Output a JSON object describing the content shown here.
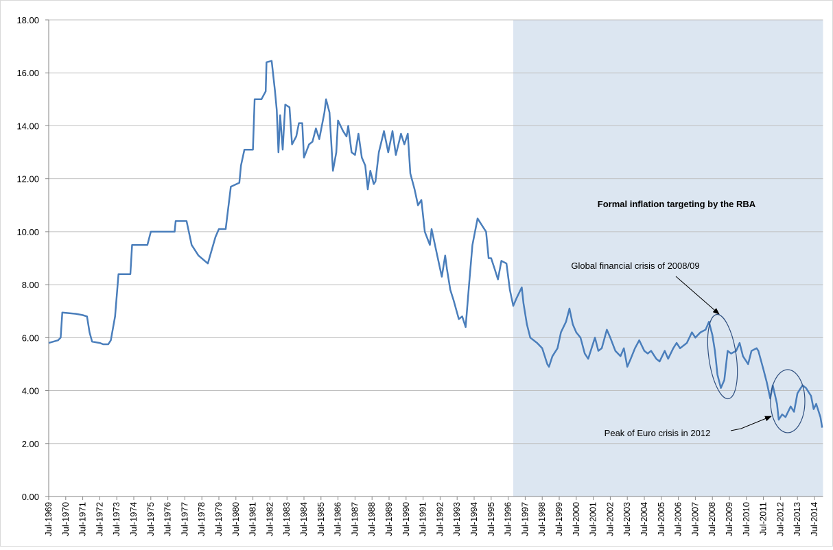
{
  "chart_data": {
    "type": "line",
    "color": "#4a7ebb",
    "grid": true,
    "xlim": [
      1969.5,
      2015.0
    ],
    "ylim": [
      0,
      18
    ],
    "yticks": [
      {
        "value": 0,
        "label": "0.00"
      },
      {
        "value": 2,
        "label": "2.00"
      },
      {
        "value": 4,
        "label": "4.00"
      },
      {
        "value": 6,
        "label": "6.00"
      },
      {
        "value": 8,
        "label": "8.00"
      },
      {
        "value": 10,
        "label": "10.00"
      },
      {
        "value": 12,
        "label": "12.00"
      },
      {
        "value": 14,
        "label": "14.00"
      },
      {
        "value": 16,
        "label": "16.00"
      },
      {
        "value": 18,
        "label": "18.00"
      }
    ],
    "xticks": [
      {
        "value": 1969.5,
        "label": "Jul-1969"
      },
      {
        "value": 1970.5,
        "label": "Jul-1970"
      },
      {
        "value": 1971.5,
        "label": "Jul-1971"
      },
      {
        "value": 1972.5,
        "label": "Jul-1972"
      },
      {
        "value": 1973.5,
        "label": "Jul-1973"
      },
      {
        "value": 1974.5,
        "label": "Jul-1974"
      },
      {
        "value": 1975.5,
        "label": "Jul-1975"
      },
      {
        "value": 1976.5,
        "label": "Jul-1976"
      },
      {
        "value": 1977.5,
        "label": "Jul-1977"
      },
      {
        "value": 1978.5,
        "label": "Jul-1978"
      },
      {
        "value": 1979.5,
        "label": "Jul-1979"
      },
      {
        "value": 1980.5,
        "label": "Jul-1980"
      },
      {
        "value": 1981.5,
        "label": "Jul-1981"
      },
      {
        "value": 1982.5,
        "label": "Jul-1982"
      },
      {
        "value": 1983.5,
        "label": "Jul-1983"
      },
      {
        "value": 1984.5,
        "label": "Jul-1984"
      },
      {
        "value": 1985.5,
        "label": "Jul-1985"
      },
      {
        "value": 1986.5,
        "label": "Jul-1986"
      },
      {
        "value": 1987.5,
        "label": "Jul-1987"
      },
      {
        "value": 1988.5,
        "label": "Jul-1988"
      },
      {
        "value": 1989.5,
        "label": "Jul-1989"
      },
      {
        "value": 1990.5,
        "label": "Jul-1990"
      },
      {
        "value": 1991.5,
        "label": "Jul-1991"
      },
      {
        "value": 1992.5,
        "label": "Jul-1992"
      },
      {
        "value": 1993.5,
        "label": "Jul-1993"
      },
      {
        "value": 1994.5,
        "label": "Jul-1994"
      },
      {
        "value": 1995.5,
        "label": "Jul-1995"
      },
      {
        "value": 1996.5,
        "label": "Jul-1996"
      },
      {
        "value": 1997.5,
        "label": "Jul-1997"
      },
      {
        "value": 1998.5,
        "label": "Jul-1998"
      },
      {
        "value": 1999.5,
        "label": "Jul-1999"
      },
      {
        "value": 2000.5,
        "label": "Jul-2000"
      },
      {
        "value": 2001.5,
        "label": "Jul-2001"
      },
      {
        "value": 2002.5,
        "label": "Jul-2002"
      },
      {
        "value": 2003.5,
        "label": "Jul-2003"
      },
      {
        "value": 2004.5,
        "label": "Jul-2004"
      },
      {
        "value": 2005.5,
        "label": "Jul-2005"
      },
      {
        "value": 2006.5,
        "label": "Jul-2006"
      },
      {
        "value": 2007.5,
        "label": "Jul-2007"
      },
      {
        "value": 2008.5,
        "label": "Jul-2008"
      },
      {
        "value": 2009.5,
        "label": "Jul-2009"
      },
      {
        "value": 2010.5,
        "label": "Jul-2010"
      },
      {
        "value": 2011.5,
        "label": "Jul-2011"
      },
      {
        "value": 2012.5,
        "label": "Jul-2012"
      },
      {
        "value": 2013.5,
        "label": "Jul-2013"
      },
      {
        "value": 2014.5,
        "label": "Jul-2014"
      }
    ],
    "shaded_region": {
      "from": 1996.8,
      "to": 2015.0,
      "label": "Formal inflation targeting by the RBA",
      "color": "#dce6f1"
    },
    "annotations": [
      "Global financial crisis of 2008/09",
      "Peak of Euro crisis in 2012"
    ],
    "x": [
      1969.5,
      1970.05,
      1970.2,
      1970.3,
      1971.1,
      1971.5,
      1971.75,
      1971.9,
      1972.05,
      1972.5,
      1972.7,
      1973.0,
      1973.15,
      1973.4,
      1973.6,
      1974.3,
      1974.4,
      1975.3,
      1975.5,
      1976.5,
      1976.9,
      1976.96,
      1977.6,
      1977.9,
      1978.3,
      1978.85,
      1979.3,
      1979.5,
      1979.9,
      1980.2,
      1980.7,
      1980.8,
      1981.0,
      1981.5,
      1981.6,
      1982.0,
      1982.25,
      1982.3,
      1982.6,
      1982.8,
      1982.9,
      1983.0,
      1983.1,
      1983.25,
      1983.4,
      1983.65,
      1983.8,
      1984.05,
      1984.2,
      1984.4,
      1984.5,
      1984.8,
      1985.0,
      1985.2,
      1985.4,
      1985.7,
      1985.8,
      1986.0,
      1986.2,
      1986.4,
      1986.5,
      1986.8,
      1987.0,
      1987.1,
      1987.3,
      1987.5,
      1987.7,
      1987.9,
      1988.1,
      1988.25,
      1988.4,
      1988.6,
      1988.7,
      1988.9,
      1989.2,
      1989.45,
      1989.7,
      1989.9,
      1990.2,
      1990.4,
      1990.6,
      1990.75,
      1991.0,
      1991.2,
      1991.4,
      1991.6,
      1991.9,
      1992.0,
      1992.3,
      1992.4,
      1992.6,
      1992.8,
      1992.9,
      1993.1,
      1993.3,
      1993.6,
      1993.8,
      1994.0,
      1994.2,
      1994.4,
      1994.7,
      1995.0,
      1995.2,
      1995.35,
      1995.5,
      1995.7,
      1995.9,
      1996.1,
      1996.4,
      1996.6,
      1996.8,
      1997.0,
      1997.3,
      1997.4,
      1997.6,
      1997.8,
      1998.2,
      1998.5,
      1998.8,
      1998.9,
      1999.1,
      1999.4,
      1999.6,
      1999.9,
      2000.1,
      2000.3,
      2000.5,
      2000.75,
      2001.0,
      2001.2,
      2001.6,
      2001.8,
      2002.0,
      2002.3,
      2002.5,
      2002.8,
      2003.1,
      2003.3,
      2003.5,
      2003.7,
      2003.95,
      2004.2,
      2004.5,
      2004.7,
      2004.9,
      2005.2,
      2005.4,
      2005.7,
      2005.9,
      2006.2,
      2006.4,
      2006.6,
      2007.0,
      2007.3,
      2007.5,
      2007.8,
      2008.1,
      2008.3,
      2008.5,
      2008.65,
      2008.8,
      2009.0,
      2009.2,
      2009.4,
      2009.6,
      2009.9,
      2010.1,
      2010.3,
      2010.6,
      2010.8,
      2011.1,
      2011.2,
      2011.5,
      2011.7,
      2011.9,
      2012.05,
      2012.3,
      2012.4,
      2012.6,
      2012.8,
      2013.1,
      2013.3,
      2013.5,
      2013.8,
      2014.0,
      2014.3,
      2014.45,
      2014.6,
      2014.85,
      2014.95
    ],
    "values": [
      5.8,
      5.9,
      6.0,
      6.95,
      6.9,
      6.85,
      6.8,
      6.2,
      5.85,
      5.8,
      5.75,
      5.75,
      5.9,
      6.8,
      8.4,
      8.4,
      9.5,
      9.5,
      10.0,
      10.0,
      10.0,
      10.4,
      10.4,
      9.5,
      9.1,
      8.8,
      9.8,
      10.1,
      10.1,
      11.7,
      11.85,
      12.5,
      13.1,
      13.1,
      15.0,
      15.0,
      15.3,
      16.4,
      16.45,
      15.3,
      14.6,
      13.0,
      14.4,
      13.1,
      14.8,
      14.7,
      13.3,
      13.6,
      14.1,
      14.1,
      12.8,
      13.3,
      13.4,
      13.9,
      13.5,
      14.5,
      15.0,
      14.5,
      12.3,
      13.0,
      14.2,
      13.8,
      13.6,
      14.0,
      13.0,
      12.9,
      13.7,
      12.8,
      12.5,
      11.6,
      12.3,
      11.8,
      11.9,
      13.0,
      13.8,
      13.0,
      13.8,
      12.9,
      13.7,
      13.3,
      13.7,
      12.2,
      11.6,
      11.0,
      11.2,
      10.0,
      9.5,
      10.1,
      9.2,
      8.9,
      8.3,
      9.1,
      8.6,
      7.8,
      7.4,
      6.7,
      6.8,
      6.4,
      8.0,
      9.5,
      10.5,
      10.2,
      10.0,
      9.0,
      9.0,
      8.6,
      8.2,
      8.9,
      8.8,
      7.8,
      7.2,
      7.5,
      7.9,
      7.3,
      6.5,
      6.0,
      5.8,
      5.6,
      5.0,
      4.9,
      5.3,
      5.6,
      6.2,
      6.6,
      7.1,
      6.5,
      6.2,
      6.0,
      5.4,
      5.2,
      6.0,
      5.5,
      5.6,
      6.3,
      6.0,
      5.5,
      5.3,
      5.6,
      4.9,
      5.2,
      5.6,
      5.9,
      5.5,
      5.4,
      5.5,
      5.2,
      5.1,
      5.5,
      5.2,
      5.6,
      5.8,
      5.6,
      5.8,
      6.2,
      6.0,
      6.2,
      6.3,
      6.6,
      6.1,
      5.5,
      4.6,
      4.1,
      4.4,
      5.5,
      5.4,
      5.5,
      5.8,
      5.3,
      5.0,
      5.5,
      5.6,
      5.5,
      4.8,
      4.3,
      3.7,
      4.2,
      3.5,
      2.9,
      3.1,
      3.0,
      3.4,
      3.2,
      3.9,
      4.2,
      4.1,
      3.8,
      3.3,
      3.5,
      3.0,
      2.6
    ]
  }
}
